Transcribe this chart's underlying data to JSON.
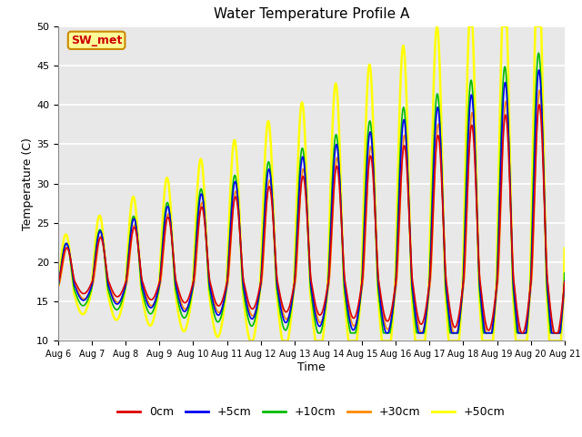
{
  "title": "Water Temperature Profile A",
  "xlabel": "Time",
  "ylabel": "Temperature (C)",
  "ylim": [
    10,
    50
  ],
  "background_color": "#e8e8e8",
  "plot_bg_color": "#e8e8e8",
  "grid_color": "white",
  "annotation_text": "SW_met",
  "annotation_bg": "#ffff99",
  "annotation_border": "#cc8800",
  "annotation_text_color": "#cc0000",
  "series": {
    "0cm": {
      "color": "#dd0000",
      "lw": 1.2
    },
    "+5cm": {
      "color": "#0000ee",
      "lw": 1.2
    },
    "+10cm": {
      "color": "#00bb00",
      "lw": 1.2
    },
    "+30cm": {
      "color": "#ff8800",
      "lw": 1.2
    },
    "+50cm": {
      "color": "#ffff00",
      "lw": 1.8
    }
  },
  "xtick_labels": [
    "Aug 6",
    "Aug 7",
    "Aug 8",
    "Aug 9",
    "Aug 10",
    "Aug 11",
    "Aug 12",
    "Aug 13",
    "Aug 14",
    "Aug 15",
    "Aug 16",
    "Aug 17",
    "Aug 18",
    "Aug 19",
    "Aug 20",
    "Aug 21"
  ],
  "ytick_labels": [
    "10",
    "15",
    "20",
    "25",
    "30",
    "35",
    "40",
    "45",
    "50"
  ]
}
